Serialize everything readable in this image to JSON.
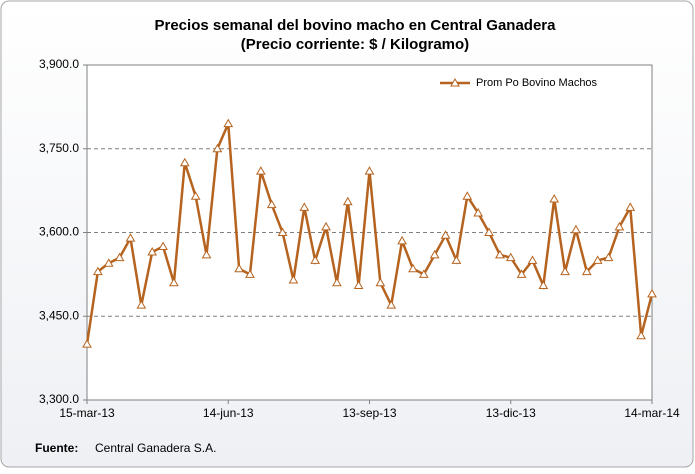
{
  "chart_data": {
    "type": "line",
    "title": "Precios semanal del bovino  macho en Central Ganadera",
    "subtitle": "(Precio corriente: $ / Kilogramo)",
    "categories": [
      "15-mar-13",
      null,
      null,
      null,
      null,
      null,
      null,
      null,
      null,
      null,
      null,
      null,
      null,
      "14-jun-13",
      null,
      null,
      null,
      null,
      null,
      null,
      null,
      null,
      null,
      null,
      null,
      null,
      "13-sep-13",
      null,
      null,
      null,
      null,
      null,
      null,
      null,
      null,
      null,
      null,
      null,
      null,
      "13-dic-13",
      null,
      null,
      null,
      null,
      null,
      null,
      null,
      null,
      null,
      null,
      null,
      null,
      "14-mar-14"
    ],
    "series": [
      {
        "name": "Prom Po Bovino Machos",
        "color": "#b5631f",
        "values": [
          3400,
          3530,
          3545,
          3555,
          3590,
          3470,
          3565,
          3575,
          3510,
          3725,
          3665,
          3560,
          3750,
          3795,
          3535,
          3525,
          3710,
          3650,
          3600,
          3515,
          3645,
          3550,
          3610,
          3510,
          3655,
          3505,
          3710,
          3510,
          3470,
          3585,
          3535,
          3525,
          3560,
          3595,
          3550,
          3665,
          3635,
          3600,
          3560,
          3555,
          3525,
          3550,
          3505,
          3660,
          3530,
          3605,
          3530,
          3550,
          3555,
          3610,
          3645,
          3415,
          3490
        ]
      }
    ],
    "ylim": [
      3300,
      3900
    ],
    "yticks": [
      {
        "value": 3300,
        "label": "3,300.0"
      },
      {
        "value": 3450,
        "label": "3,450.0"
      },
      {
        "value": 3600,
        "label": "3,600.0"
      },
      {
        "value": 3750,
        "label": "3,750.0"
      },
      {
        "value": 3900,
        "label": "3,900.0"
      }
    ],
    "grid": true,
    "legend": "top-right",
    "source_label": "Fuente:",
    "source": "Central Ganadera S.A."
  }
}
